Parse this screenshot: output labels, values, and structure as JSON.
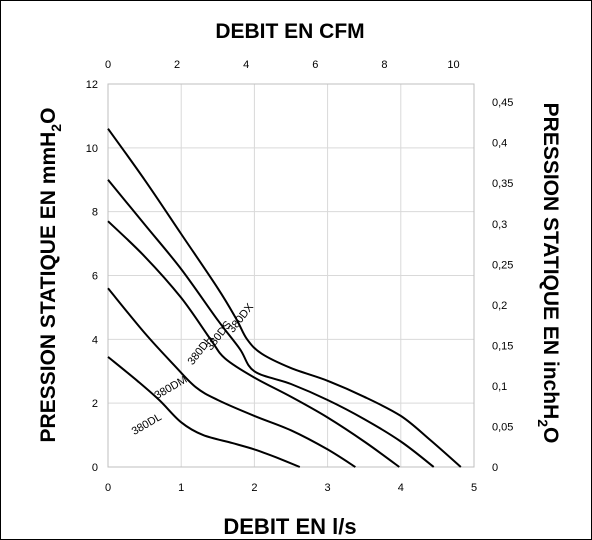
{
  "chart_data": {
    "type": "line",
    "x_bottom": {
      "label": "DEBIT EN l/s",
      "ticks": [
        "0",
        "1",
        "2",
        "3",
        "4",
        "5"
      ],
      "range": [
        0,
        5
      ]
    },
    "x_top": {
      "label": "DEBIT EN CFM",
      "ticks": [
        "0",
        "2",
        "4",
        "6",
        "8",
        "10"
      ],
      "range": [
        0,
        10.5943
      ]
    },
    "y_left": {
      "label_main": "PRESSION STATIQUE EN mmH",
      "label_sub": "2",
      "label_tail": "O",
      "ticks": [
        "0",
        "2",
        "4",
        "6",
        "8",
        "10",
        "12"
      ],
      "range": [
        0,
        12
      ]
    },
    "y_right": {
      "label_main": "PRESSION STATIQUE EN inchH",
      "label_sub": "2",
      "label_tail": "O",
      "ticks": [
        "0",
        "0,05",
        "0,1",
        "0,15",
        "0,2",
        "0,25",
        "0,3",
        "0,35",
        "0,4",
        "0,45"
      ],
      "range": [
        0,
        0.4724
      ]
    },
    "grid": true,
    "series": [
      {
        "name": "380DX",
        "points": [
          [
            0,
            10.6
          ],
          [
            0.5,
            9.0
          ],
          [
            1.0,
            7.3
          ],
          [
            1.5,
            5.6
          ],
          [
            1.75,
            4.65
          ],
          [
            1.9,
            4.0
          ],
          [
            2.1,
            3.55
          ],
          [
            2.5,
            3.1
          ],
          [
            3.0,
            2.7
          ],
          [
            3.5,
            2.2
          ],
          [
            4.0,
            1.6
          ],
          [
            4.4,
            0.85
          ],
          [
            4.82,
            0
          ]
        ],
        "label_pos": [
          1.85,
          4.6
        ],
        "label_angle": -52
      },
      {
        "name": "380DS",
        "points": [
          [
            0,
            9.0
          ],
          [
            0.5,
            7.6
          ],
          [
            1.0,
            6.2
          ],
          [
            1.5,
            4.6
          ],
          [
            1.8,
            3.7
          ],
          [
            2.0,
            3.0
          ],
          [
            2.5,
            2.6
          ],
          [
            3.0,
            2.1
          ],
          [
            3.5,
            1.5
          ],
          [
            4.0,
            0.8
          ],
          [
            4.45,
            0
          ]
        ],
        "label_pos": [
          1.55,
          4.05
        ],
        "label_angle": -52
      },
      {
        "name": "380DH",
        "points": [
          [
            0,
            7.7
          ],
          [
            0.5,
            6.6
          ],
          [
            1.0,
            5.3
          ],
          [
            1.4,
            4.0
          ],
          [
            1.6,
            3.4
          ],
          [
            2.0,
            2.8
          ],
          [
            2.5,
            2.2
          ],
          [
            3.0,
            1.55
          ],
          [
            3.5,
            0.8
          ],
          [
            3.98,
            0
          ]
        ],
        "label_pos": [
          1.3,
          3.6
        ],
        "label_angle": -52
      },
      {
        "name": "380DM",
        "points": [
          [
            0,
            5.6
          ],
          [
            0.5,
            4.2
          ],
          [
            0.9,
            3.2
          ],
          [
            1.2,
            2.5
          ],
          [
            1.5,
            2.1
          ],
          [
            2.0,
            1.6
          ],
          [
            2.5,
            1.15
          ],
          [
            3.0,
            0.55
          ],
          [
            3.38,
            0
          ]
        ],
        "label_pos": [
          0.88,
          2.4
        ],
        "label_angle": -30
      },
      {
        "name": "380DL",
        "points": [
          [
            0,
            3.45
          ],
          [
            0.4,
            2.7
          ],
          [
            0.7,
            2.1
          ],
          [
            1.0,
            1.4
          ],
          [
            1.3,
            1.0
          ],
          [
            1.7,
            0.75
          ],
          [
            2.0,
            0.55
          ],
          [
            2.3,
            0.3
          ],
          [
            2.62,
            0
          ]
        ],
        "label_pos": [
          0.55,
          1.25
        ],
        "label_angle": -30
      }
    ]
  }
}
